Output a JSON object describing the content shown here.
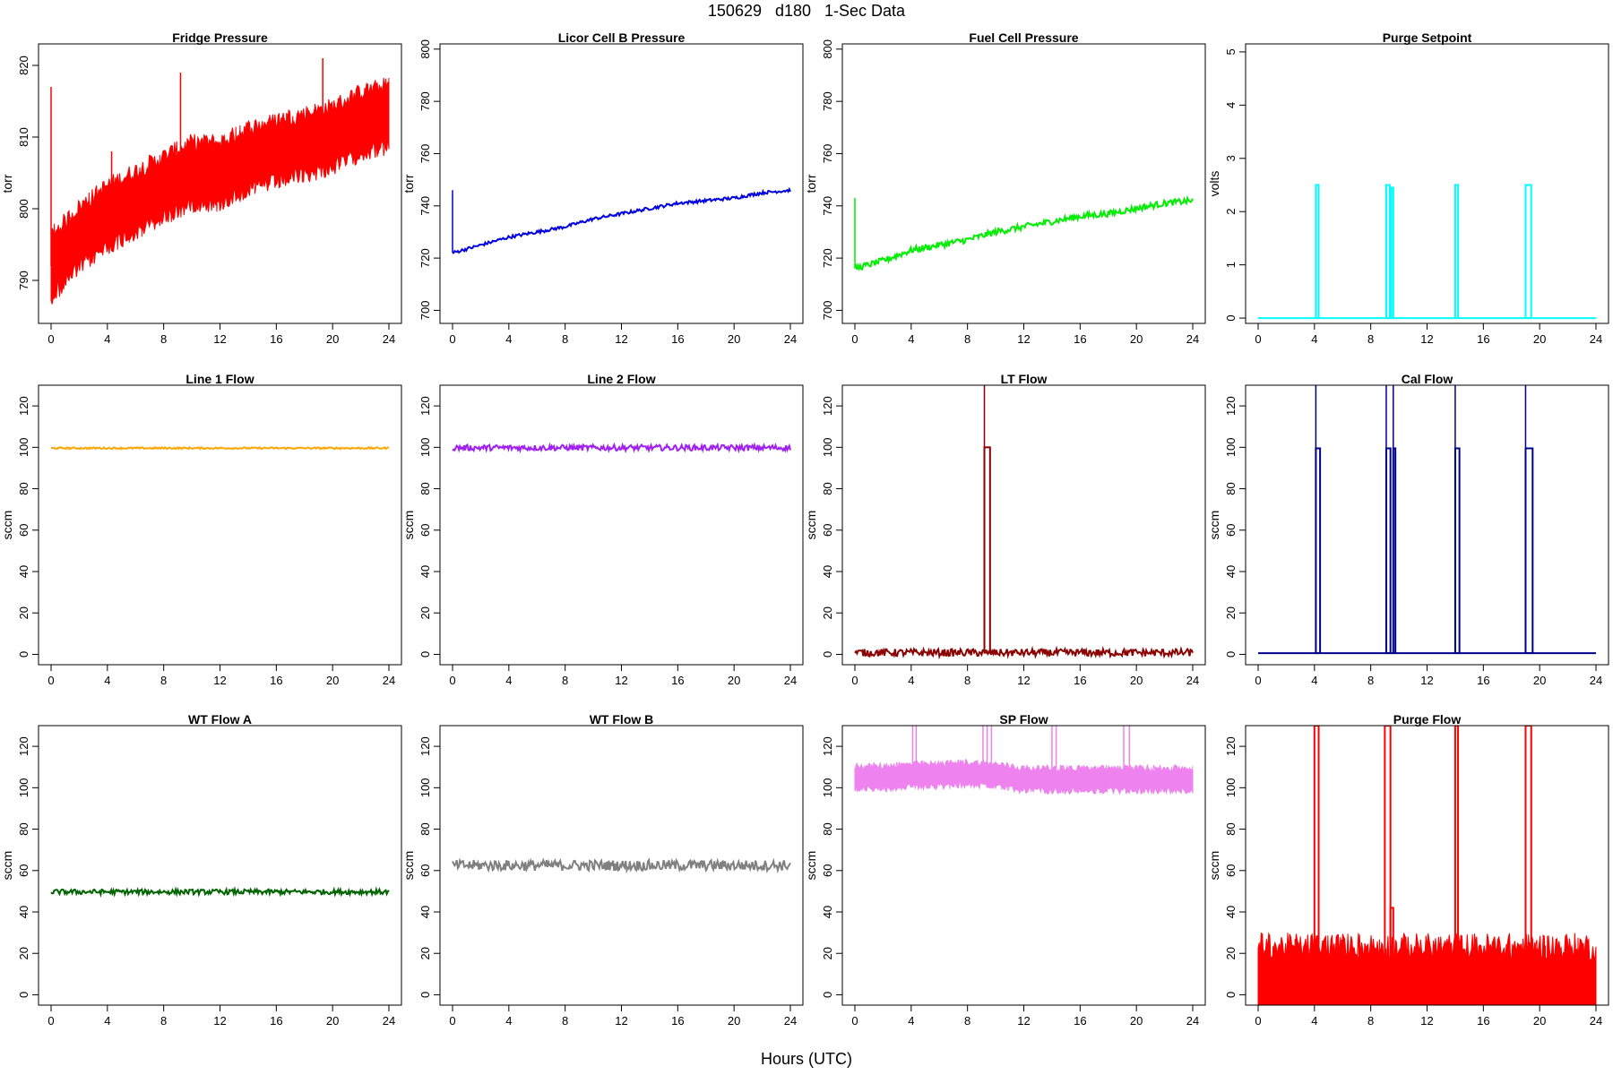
{
  "figure": {
    "title": "150629   d180   1-Sec Data",
    "xlabel": "Hours (UTC)"
  },
  "chart_data": [
    {
      "type": "line",
      "title": "Fridge Pressure",
      "ylabel": "torr",
      "color": "#ff0000",
      "xlim": [
        0,
        24
      ],
      "ylim": [
        784,
        823
      ],
      "xticks": [
        0,
        4,
        8,
        12,
        16,
        20,
        24
      ],
      "yticks": [
        790,
        800,
        810,
        820
      ],
      "noise": 5.5,
      "x": [
        0,
        2,
        4,
        6,
        8,
        10,
        12,
        14,
        16,
        18,
        20,
        22,
        24
      ],
      "y": [
        792,
        796,
        799,
        801,
        803,
        805,
        805,
        807,
        808,
        809,
        810,
        812,
        813
      ],
      "spikes": [
        {
          "x": 0,
          "y": 817
        },
        {
          "x": 4.3,
          "y": 808
        },
        {
          "x": 9.2,
          "y": 819
        },
        {
          "x": 14.1,
          "y": 805
        },
        {
          "x": 19.3,
          "y": 821
        }
      ]
    },
    {
      "type": "line",
      "title": "Licor Cell B Pressure",
      "ylabel": "torr",
      "color": "#0000e0",
      "xlim": [
        0,
        24
      ],
      "ylim": [
        695,
        802
      ],
      "xticks": [
        0,
        4,
        8,
        12,
        16,
        20,
        24
      ],
      "yticks": [
        700,
        720,
        740,
        760,
        780,
        800
      ],
      "noise": 0.6,
      "x": [
        0,
        2,
        4,
        6,
        8,
        10,
        12,
        14,
        16,
        18,
        20,
        22,
        24
      ],
      "y": [
        722,
        725,
        728,
        730,
        732,
        735,
        737,
        739,
        741,
        742,
        743,
        745,
        746
      ],
      "spikes": [
        {
          "x": 0,
          "y": 746
        }
      ]
    },
    {
      "type": "line",
      "title": "Fuel Cell Pressure",
      "ylabel": "torr",
      "color": "#00ee00",
      "xlim": [
        0,
        24
      ],
      "ylim": [
        695,
        802
      ],
      "xticks": [
        0,
        4,
        8,
        12,
        16,
        20,
        24
      ],
      "yticks": [
        700,
        720,
        740,
        760,
        780,
        800
      ],
      "noise": 1.2,
      "x": [
        0,
        2,
        4,
        6,
        8,
        10,
        12,
        14,
        16,
        18,
        20,
        22,
        24
      ],
      "y": [
        716,
        719,
        723,
        725,
        727,
        730,
        732,
        734,
        736,
        737,
        739,
        741,
        742
      ],
      "spikes": [
        {
          "x": 0,
          "y": 743
        }
      ]
    },
    {
      "type": "line",
      "title": "Purge Setpoint",
      "ylabel": "volts",
      "color": "#00ffff",
      "xlim": [
        0,
        24
      ],
      "ylim": [
        -0.1,
        5.15
      ],
      "xticks": [
        0,
        4,
        8,
        12,
        16,
        20,
        24
      ],
      "yticks": [
        0,
        1,
        2,
        3,
        4,
        5
      ],
      "noise": 0,
      "x": [
        0,
        24
      ],
      "y": [
        0,
        0
      ],
      "pulses": [
        {
          "start": 4.1,
          "end": 4.3,
          "height": 2.5
        },
        {
          "start": 9.1,
          "end": 9.35,
          "height": 2.5
        },
        {
          "start": 9.45,
          "end": 9.6,
          "height": 2.45
        },
        {
          "start": 14.0,
          "end": 14.2,
          "height": 2.5
        },
        {
          "start": 19.0,
          "end": 19.4,
          "height": 2.5
        }
      ]
    },
    {
      "type": "line",
      "title": "Line 1 Flow",
      "ylabel": "sccm",
      "color": "#ffa500",
      "xlim": [
        0,
        24
      ],
      "ylim": [
        -5,
        130
      ],
      "xticks": [
        0,
        4,
        8,
        12,
        16,
        20,
        24
      ],
      "yticks": [
        0,
        20,
        40,
        60,
        80,
        100,
        120
      ],
      "noise": 0.4,
      "x": [
        0,
        24
      ],
      "y": [
        99.6,
        99.6
      ]
    },
    {
      "type": "line",
      "title": "Line 2 Flow",
      "ylabel": "sccm",
      "color": "#a020f0",
      "xlim": [
        0,
        24
      ],
      "ylim": [
        -5,
        130
      ],
      "xticks": [
        0,
        4,
        8,
        12,
        16,
        20,
        24
      ],
      "yticks": [
        0,
        20,
        40,
        60,
        80,
        100,
        120
      ],
      "noise": 1.4,
      "x": [
        0,
        24
      ],
      "y": [
        99.8,
        99.8
      ]
    },
    {
      "type": "line",
      "title": "LT Flow",
      "ylabel": "sccm",
      "color": "#8b0000",
      "xlim": [
        0,
        24
      ],
      "ylim": [
        -5,
        130
      ],
      "xticks": [
        0,
        4,
        8,
        12,
        16,
        20,
        24
      ],
      "yticks": [
        0,
        20,
        40,
        60,
        80,
        100,
        120
      ],
      "noise": 1.8,
      "x": [
        0,
        24
      ],
      "y": [
        0.8,
        0.8
      ],
      "pulses": [
        {
          "start": 9.2,
          "end": 9.6,
          "height": 100
        }
      ],
      "spikes": [
        {
          "x": 9.2,
          "y": 130
        }
      ]
    },
    {
      "type": "line",
      "title": "Cal Flow",
      "ylabel": "sccm",
      "color": "#00008b",
      "xlim": [
        0,
        24
      ],
      "ylim": [
        -5,
        130
      ],
      "xticks": [
        0,
        4,
        8,
        12,
        16,
        20,
        24
      ],
      "yticks": [
        0,
        20,
        40,
        60,
        80,
        100,
        120
      ],
      "noise": 0,
      "x": [
        0,
        24
      ],
      "y": [
        0.6,
        0.6
      ],
      "pulses": [
        {
          "start": 4.1,
          "end": 4.4,
          "height": 99.5
        },
        {
          "start": 9.1,
          "end": 9.4,
          "height": 99.5
        },
        {
          "start": 9.6,
          "end": 9.75,
          "height": 99.5
        },
        {
          "start": 14.0,
          "end": 14.3,
          "height": 99.5
        },
        {
          "start": 19.0,
          "end": 19.5,
          "height": 99.5
        }
      ],
      "spikes": [
        {
          "x": 4.1,
          "y": 130
        },
        {
          "x": 9.1,
          "y": 130
        },
        {
          "x": 9.6,
          "y": 130
        },
        {
          "x": 14.0,
          "y": 130
        },
        {
          "x": 19.0,
          "y": 130
        }
      ]
    },
    {
      "type": "line",
      "title": "WT Flow A",
      "ylabel": "sccm",
      "color": "#006400",
      "xlim": [
        0,
        24
      ],
      "ylim": [
        -5,
        130
      ],
      "xticks": [
        0,
        4,
        8,
        12,
        16,
        20,
        24
      ],
      "yticks": [
        0,
        20,
        40,
        60,
        80,
        100,
        120
      ],
      "noise": 1.2,
      "x": [
        0,
        24
      ],
      "y": [
        49.7,
        49.7
      ]
    },
    {
      "type": "line",
      "title": "WT Flow B",
      "ylabel": "sccm",
      "color": "#808080",
      "xlim": [
        0,
        24
      ],
      "ylim": [
        -5,
        130
      ],
      "xticks": [
        0,
        4,
        8,
        12,
        16,
        20,
        24
      ],
      "yticks": [
        0,
        20,
        40,
        60,
        80,
        100,
        120
      ],
      "noise": 2.6,
      "x": [
        0,
        24
      ],
      "y": [
        62.5,
        62.5
      ]
    },
    {
      "type": "line",
      "title": "SP Flow",
      "ylabel": "sccm",
      "color": "#ee82ee",
      "xlim": [
        0,
        24
      ],
      "ylim": [
        -5,
        130
      ],
      "xticks": [
        0,
        4,
        8,
        12,
        16,
        20,
        24
      ],
      "yticks": [
        0,
        20,
        40,
        60,
        80,
        100,
        120
      ],
      "noise": 7,
      "x": [
        0,
        2,
        4,
        6,
        8,
        10,
        12,
        14,
        16,
        18,
        20,
        22,
        24
      ],
      "y": [
        105,
        105,
        106,
        106,
        107,
        106,
        104,
        104,
        104,
        104,
        104,
        104,
        104
      ],
      "spikes": [
        {
          "x": 4.1,
          "y": 130
        },
        {
          "x": 4.35,
          "y": 130
        },
        {
          "x": 9.1,
          "y": 130
        },
        {
          "x": 9.4,
          "y": 130
        },
        {
          "x": 9.7,
          "y": 130
        },
        {
          "x": 14.0,
          "y": 130
        },
        {
          "x": 14.3,
          "y": 130
        },
        {
          "x": 19.1,
          "y": 130
        },
        {
          "x": 19.5,
          "y": 130
        }
      ]
    },
    {
      "type": "line",
      "title": "Purge Flow",
      "ylabel": "sccm",
      "color": "#ff0000",
      "xlim": [
        0,
        24
      ],
      "ylim": [
        -5,
        130
      ],
      "xticks": [
        0,
        4,
        8,
        12,
        16,
        20,
        24
      ],
      "yticks": [
        0,
        20,
        40,
        60,
        80,
        100,
        120
      ],
      "noise": 30,
      "x": [
        0,
        24
      ],
      "y": [
        0,
        0
      ],
      "pulses": [
        {
          "start": 4.0,
          "end": 4.3,
          "height": 130
        },
        {
          "start": 9.0,
          "end": 9.4,
          "height": 130
        },
        {
          "start": 9.4,
          "end": 9.6,
          "height": 42
        },
        {
          "start": 14.0,
          "end": 14.2,
          "height": 130
        },
        {
          "start": 19.0,
          "end": 19.4,
          "height": 130
        }
      ]
    }
  ]
}
